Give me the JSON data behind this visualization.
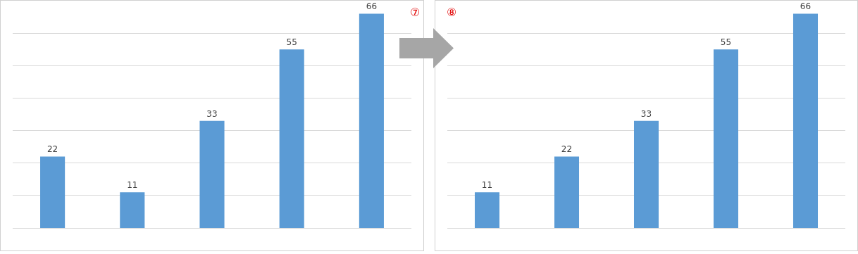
{
  "chart_data": [
    {
      "type": "bar",
      "categories": [
        null,
        null,
        null,
        null,
        null
      ],
      "values": [
        22,
        11,
        33,
        55,
        66
      ],
      "color": "#5b9bd5",
      "data_labels": true,
      "ylim": [
        0,
        70
      ],
      "grid": "y",
      "annotations": [
        "⑦"
      ]
    },
    {
      "type": "bar",
      "categories": [
        null,
        null,
        null,
        null,
        null
      ],
      "values": [
        11,
        22,
        33,
        55,
        66
      ],
      "color": "#5b9bd5",
      "data_labels": true,
      "ylim": [
        0,
        70
      ],
      "grid": "y",
      "annotations": [
        "⑧"
      ]
    }
  ]
}
